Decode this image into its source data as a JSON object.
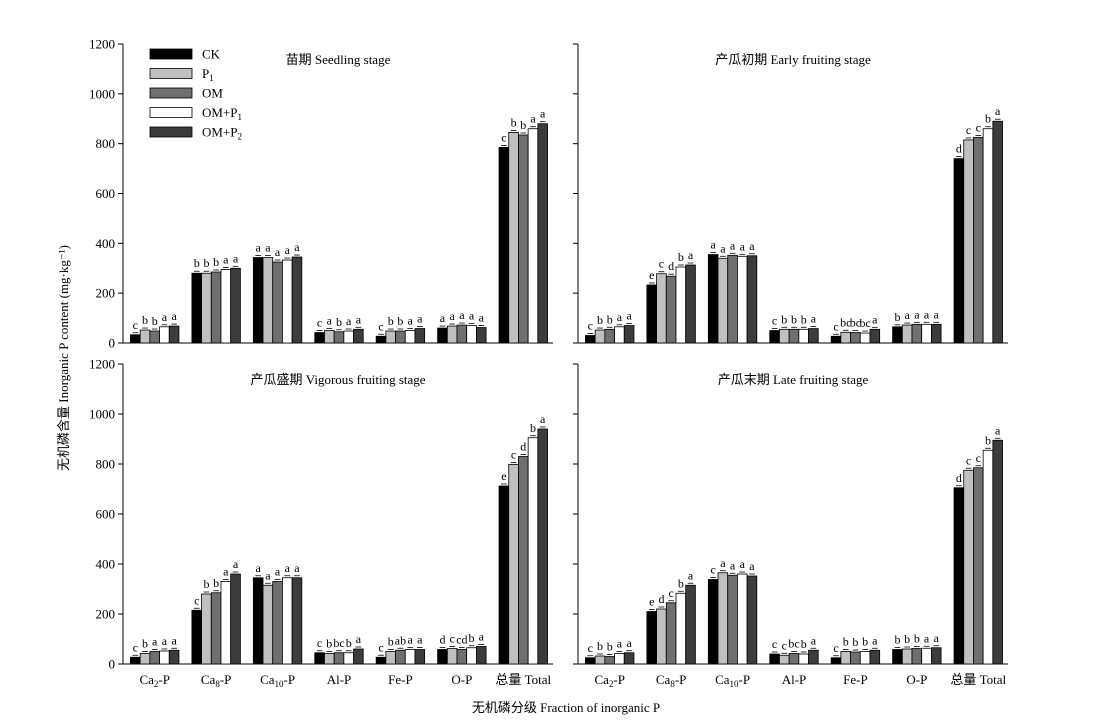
{
  "chart_data": {
    "type": "bar",
    "ylabel": "无机磷含量 Inorganic P content (mg·kg⁻¹)",
    "xlabel": "无机磷分级 Fraction of inorganic P",
    "ylim": [
      0,
      1200
    ],
    "yticks": [
      0,
      200,
      400,
      600,
      800,
      1000,
      1200
    ],
    "categories": [
      {
        "base": "Ca",
        "sub": "2",
        "suffix": "-P"
      },
      {
        "base": "Ca",
        "sub": "8",
        "suffix": "-P"
      },
      {
        "base": "Ca",
        "sub": "10",
        "suffix": "-P"
      },
      {
        "base": "Al-P",
        "sub": "",
        "suffix": ""
      },
      {
        "base": "Fe-P",
        "sub": "",
        "suffix": ""
      },
      {
        "base": "O-P",
        "sub": "",
        "suffix": ""
      },
      {
        "base": "总量 Total",
        "sub": "",
        "suffix": ""
      }
    ],
    "series": [
      {
        "name": "CK",
        "label_base": "CK",
        "label_sub": "",
        "color": "#000000"
      },
      {
        "name": "P1",
        "label_base": "P",
        "label_sub": "1",
        "color": "#c0c0c0"
      },
      {
        "name": "OM",
        "label_base": "OM",
        "label_sub": "",
        "color": "#6f6f6f"
      },
      {
        "name": "OM+P1",
        "label_base": "OM+P",
        "label_sub": "1",
        "color": "#ffffff"
      },
      {
        "name": "OM+P2",
        "label_base": "OM+P",
        "label_sub": "2",
        "color": "#3c3c3c"
      }
    ],
    "legend_position": "top-left of first panel",
    "panels": [
      {
        "title": "苗期 Seedling stage",
        "values": [
          [
            33,
            52,
            48,
            65,
            68
          ],
          [
            280,
            280,
            285,
            295,
            300
          ],
          [
            343,
            343,
            325,
            333,
            345
          ],
          [
            42,
            50,
            45,
            48,
            55
          ],
          [
            27,
            48,
            48,
            50,
            58
          ],
          [
            60,
            68,
            72,
            70,
            62
          ],
          [
            785,
            845,
            835,
            860,
            880
          ]
        ],
        "letters": [
          [
            "c",
            "b",
            "b",
            "a",
            "a"
          ],
          [
            "b",
            "b",
            "b",
            "a",
            "a"
          ],
          [
            "a",
            "a",
            "a",
            "a",
            "a"
          ],
          [
            "c",
            "a",
            "b",
            "a",
            "a"
          ],
          [
            "c",
            "b",
            "b",
            "a",
            "a"
          ],
          [
            "a",
            "a",
            "a",
            "a",
            "a"
          ],
          [
            "c",
            "b",
            "b",
            "a",
            "a"
          ]
        ]
      },
      {
        "title": "产瓜初期  Early fruiting stage",
        "values": [
          [
            30,
            52,
            55,
            65,
            70
          ],
          [
            233,
            278,
            268,
            305,
            313
          ],
          [
            355,
            340,
            352,
            348,
            350
          ],
          [
            50,
            55,
            55,
            55,
            58
          ],
          [
            27,
            43,
            42,
            40,
            55
          ],
          [
            65,
            72,
            75,
            75,
            75
          ],
          [
            740,
            815,
            825,
            860,
            890
          ]
        ],
        "letters": [
          [
            "c",
            "b",
            "b",
            "a",
            "a"
          ],
          [
            "e",
            "c",
            "d",
            "b",
            "a"
          ],
          [
            "a",
            "a",
            "a",
            "a",
            "a"
          ],
          [
            "c",
            "b",
            "b",
            "b",
            "a"
          ],
          [
            "c",
            "bc",
            "bc",
            "bc",
            "a"
          ],
          [
            "b",
            "a",
            "a",
            "a",
            "a"
          ],
          [
            "d",
            "c",
            "c",
            "b",
            "a"
          ]
        ]
      },
      {
        "title": "产瓜盛期 Vigorous fruiting stage",
        "values": [
          [
            27,
            42,
            50,
            52,
            55
          ],
          [
            215,
            280,
            285,
            330,
            360
          ],
          [
            345,
            315,
            330,
            345,
            345
          ],
          [
            45,
            42,
            45,
            45,
            60
          ],
          [
            27,
            50,
            55,
            58,
            58
          ],
          [
            58,
            62,
            58,
            65,
            70
          ],
          [
            712,
            798,
            830,
            905,
            940
          ]
        ],
        "letters": [
          [
            "c",
            "b",
            "a",
            "a",
            "a"
          ],
          [
            "c",
            "b",
            "b",
            "a",
            "a"
          ],
          [
            "a",
            "a",
            "a",
            "a",
            "a"
          ],
          [
            "c",
            "b",
            "bc",
            "b",
            "a"
          ],
          [
            "c",
            "b",
            "ab",
            "a",
            "a"
          ],
          [
            "d",
            "c",
            "cd",
            "b",
            "a"
          ],
          [
            "e",
            "c",
            "d",
            "b",
            "a"
          ]
        ]
      },
      {
        "title": "产瓜末期 Late fruiting stage",
        "values": [
          [
            25,
            32,
            30,
            42,
            45
          ],
          [
            210,
            220,
            245,
            283,
            315
          ],
          [
            338,
            365,
            355,
            360,
            352
          ],
          [
            40,
            35,
            42,
            40,
            55
          ],
          [
            25,
            50,
            48,
            50,
            55
          ],
          [
            58,
            60,
            62,
            63,
            65
          ],
          [
            705,
            775,
            785,
            855,
            895
          ]
        ],
        "letters": [
          [
            "c",
            "b",
            "b",
            "a",
            "a"
          ],
          [
            "e",
            "d",
            "c",
            "b",
            "a"
          ],
          [
            "c",
            "a",
            "a",
            "a",
            "a"
          ],
          [
            "c",
            "c",
            "bc",
            "b",
            "a"
          ],
          [
            "c",
            "b",
            "b",
            "b",
            "a"
          ],
          [
            "b",
            "b",
            "b",
            "a",
            "a"
          ],
          [
            "d",
            "c",
            "c",
            "b",
            "a"
          ]
        ]
      }
    ]
  }
}
